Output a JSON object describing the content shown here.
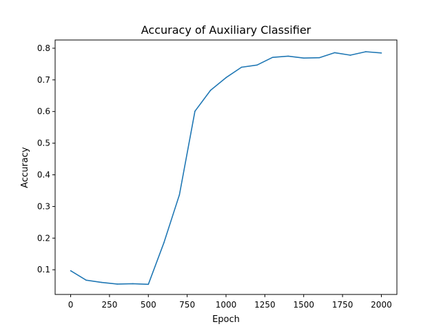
{
  "chart_data": {
    "type": "line",
    "title": "Accuracy of Auxiliary Classifier",
    "xlabel": "Epoch",
    "ylabel": "Accuracy",
    "xlim": [
      -100,
      2100
    ],
    "ylim": [
      0.022,
      0.826
    ],
    "xticks": [
      0,
      250,
      500,
      750,
      1000,
      1250,
      1500,
      1750,
      2000
    ],
    "xtick_labels": [
      "0",
      "250",
      "500",
      "750",
      "1000",
      "1250",
      "1500",
      "1750",
      "2000"
    ],
    "yticks": [
      0.1,
      0.2,
      0.3,
      0.4,
      0.5,
      0.6,
      0.7,
      0.8
    ],
    "ytick_labels": [
      "0.1",
      "0.2",
      "0.3",
      "0.4",
      "0.5",
      "0.6",
      "0.7",
      "0.8"
    ],
    "grid": false,
    "series": [
      {
        "color": "#1f77b4",
        "x": [
          0,
          100,
          200,
          300,
          400,
          500,
          600,
          700,
          800,
          900,
          1000,
          1100,
          1200,
          1300,
          1400,
          1500,
          1600,
          1700,
          1800,
          1900,
          2000
        ],
        "y": [
          0.097,
          0.067,
          0.06,
          0.055,
          0.056,
          0.054,
          0.185,
          0.337,
          0.601,
          0.667,
          0.707,
          0.74,
          0.747,
          0.771,
          0.775,
          0.769,
          0.77,
          0.786,
          0.778,
          0.789,
          0.785
        ]
      }
    ]
  }
}
